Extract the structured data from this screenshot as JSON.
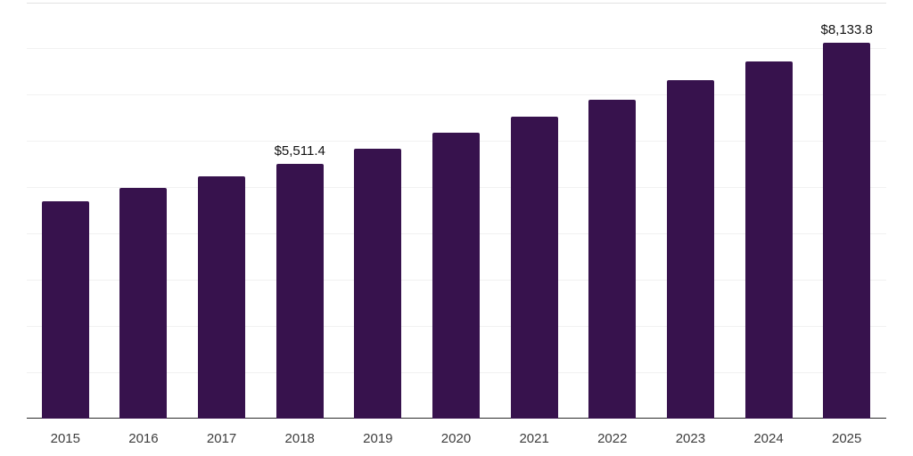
{
  "chart_data": {
    "type": "bar",
    "title": "",
    "xlabel": "",
    "ylabel": "",
    "categories": [
      "2015",
      "2016",
      "2017",
      "2018",
      "2019",
      "2020",
      "2021",
      "2022",
      "2023",
      "2024",
      "2025"
    ],
    "values": [
      4700,
      4995,
      5250,
      5511.4,
      5840,
      6185,
      6535,
      6900,
      7315,
      7725,
      8133.8
    ],
    "data_labels": [
      {
        "category": "2018",
        "text": "$5,511.4"
      },
      {
        "category": "2025",
        "text": "$8,133.8"
      }
    ],
    "ylim": [
      0,
      9000
    ],
    "gridline_step": 1000,
    "grid": "horizontal",
    "y_tick_labels_shown": false,
    "legend": "none",
    "colors": {
      "bar": "#37124d",
      "axis_line": "#2a2a2a",
      "gridline": "#f1f1f1",
      "gridline_top": "#e3e3e3",
      "x_tick_text": "#3d3d3d",
      "data_label_text": "#111111",
      "background": "#ffffff"
    }
  }
}
